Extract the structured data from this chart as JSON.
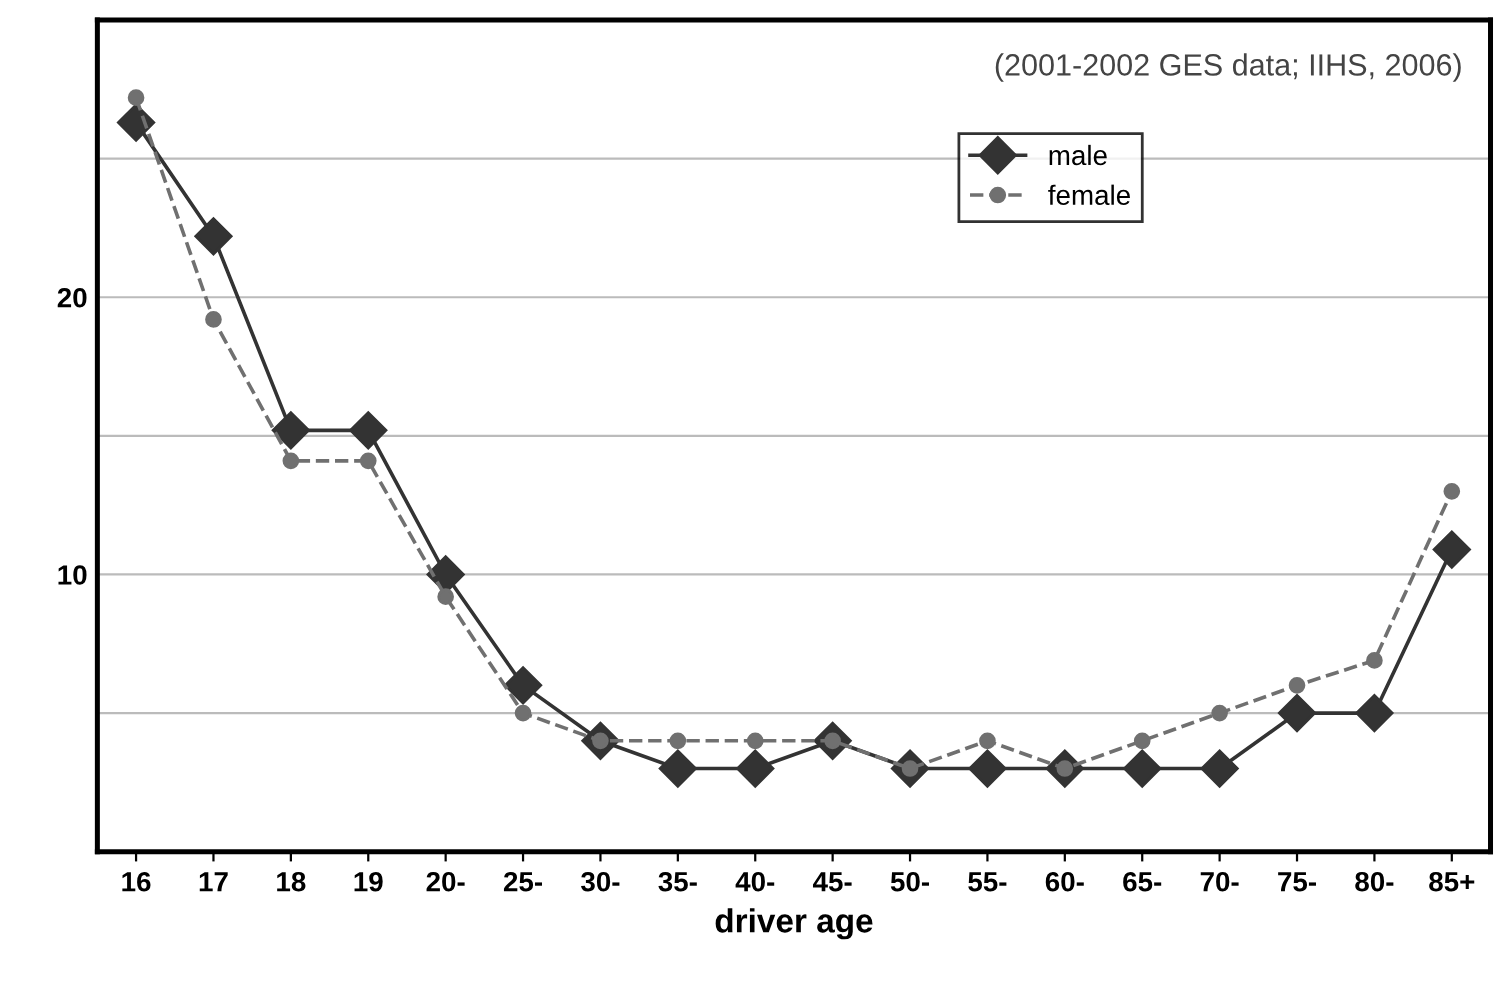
{
  "chart_data": {
    "type": "line",
    "xlabel": "driver age",
    "annotations": [
      "(2001-2002 GES data; IIHS, 2006)"
    ],
    "categories": [
      "16",
      "17",
      "18",
      "19",
      "20-",
      "25-",
      "30-",
      "35-",
      "40-",
      "45-",
      "50-",
      "55-",
      "60-",
      "65-",
      "70-",
      "75-",
      "80-",
      "85+"
    ],
    "series": [
      {
        "name": "male",
        "color": "#333333",
        "marker": "diamond",
        "line_style": "solid",
        "values": [
          26.3,
          22.2,
          15.2,
          15.2,
          10,
          6,
          4,
          3,
          3,
          4,
          3,
          3,
          3,
          3,
          3,
          5,
          5,
          10.9
        ]
      },
      {
        "name": "female",
        "color": "#707070",
        "marker": "circle",
        "line_style": "dashed",
        "values": [
          27.2,
          19.2,
          14.1,
          14.1,
          9.2,
          5,
          4,
          4,
          4,
          4,
          3,
          4,
          3,
          4,
          5,
          6,
          6.9,
          13
        ]
      }
    ],
    "ylim": [
      0,
      30
    ],
    "yticks": [
      {
        "value": 5,
        "label": null
      },
      10,
      {
        "value": 15,
        "label": null
      },
      20,
      {
        "value": 25,
        "label": null
      }
    ],
    "grid": "y",
    "legend": "top right"
  }
}
